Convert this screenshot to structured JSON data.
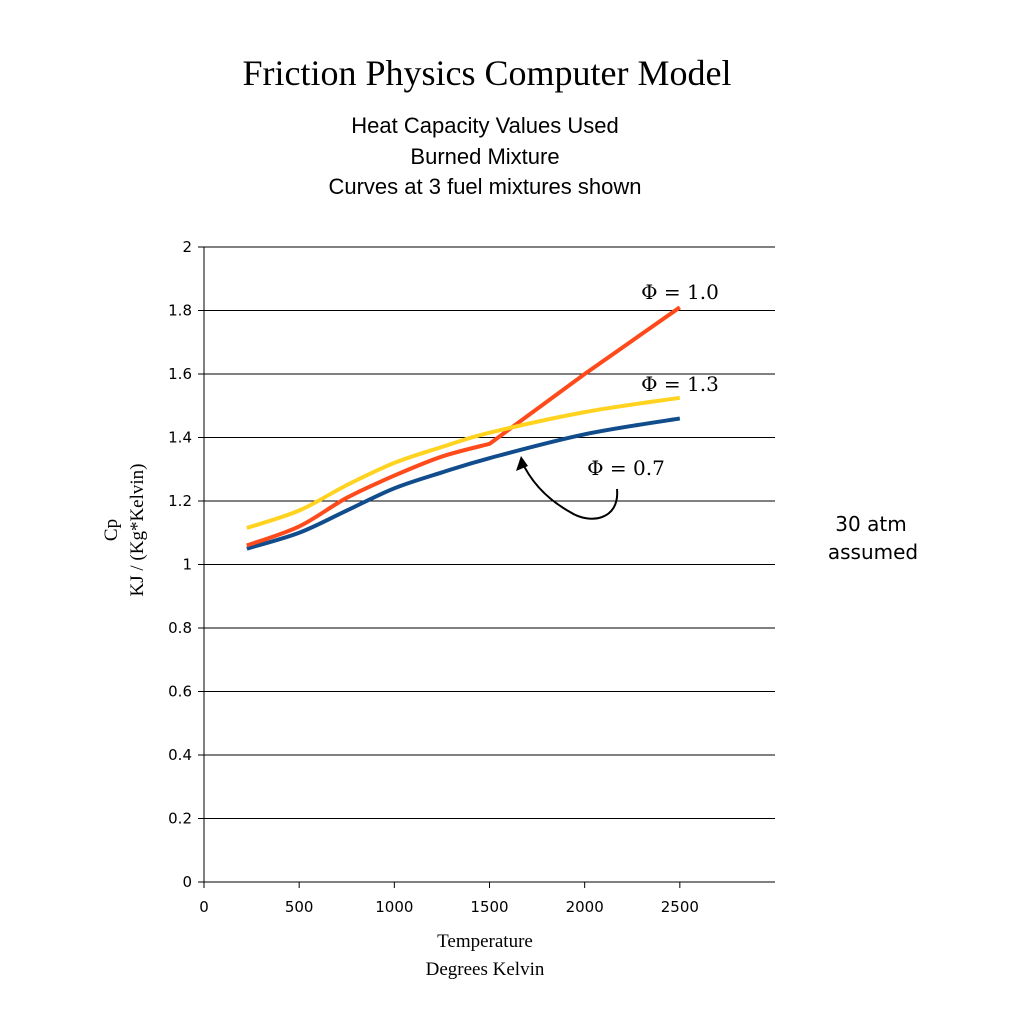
{
  "chart_data": {
    "type": "line",
    "title": "Friction Physics Computer Model",
    "subtitle": [
      "Heat Capacity Values Used",
      "Burned Mixture",
      "Curves at 3 fuel mixtures shown"
    ],
    "xlabel": [
      "Temperature",
      "Degrees Kelvin"
    ],
    "ylabel": [
      "Cp",
      "KJ / (Kg*Kelvin)"
    ],
    "xlim": [
      0,
      3000
    ],
    "ylim": [
      0,
      2
    ],
    "xticks": [
      "0",
      "500",
      "1000",
      "1500",
      "2000",
      "2500"
    ],
    "yticks": [
      "0",
      "0.2",
      "0.4",
      "0.6",
      "0.8",
      "1",
      "1.2",
      "1.4",
      "1.6",
      "1.8",
      "2"
    ],
    "grid": "horizontal",
    "series": [
      {
        "name": "Φ = 0.7",
        "color": "#114d8c",
        "x": [
          225,
          500,
          750,
          1000,
          1250,
          1500,
          2000,
          2500
        ],
        "y": [
          1.05,
          1.1,
          1.17,
          1.24,
          1.29,
          1.335,
          1.41,
          1.46
        ]
      },
      {
        "name": "Φ = 1.0",
        "color": "#ff4a1c",
        "x": [
          225,
          500,
          750,
          1000,
          1250,
          1500,
          2000,
          2500
        ],
        "y": [
          1.06,
          1.12,
          1.21,
          1.28,
          1.34,
          1.38,
          1.6,
          1.81
        ]
      },
      {
        "name": "Φ = 1.3",
        "color": "#ffd320",
        "x": [
          225,
          500,
          750,
          1000,
          1250,
          1500,
          2000,
          2500
        ],
        "y": [
          1.115,
          1.17,
          1.25,
          1.32,
          1.37,
          1.415,
          1.48,
          1.525
        ]
      }
    ],
    "annotations": [
      "Φ = 1.0",
      "Φ = 1.3",
      "Φ = 0.7"
    ],
    "side_note": [
      "30 atm",
      "assumed"
    ]
  }
}
